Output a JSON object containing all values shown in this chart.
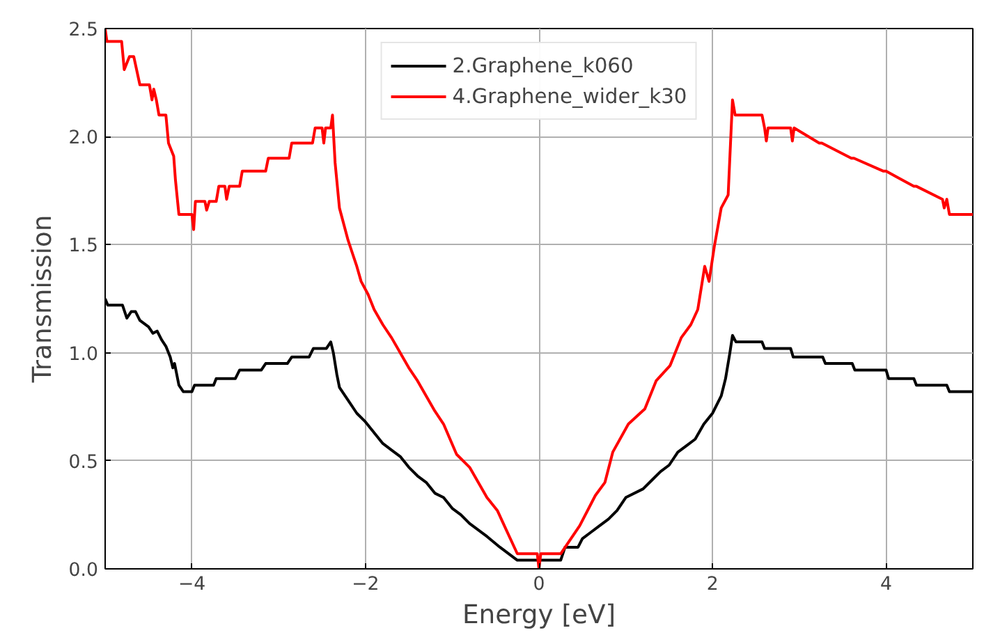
{
  "chart_data": {
    "type": "line",
    "xlabel": "Energy [eV]",
    "ylabel": "Transmission",
    "xlim": [
      -5,
      5
    ],
    "ylim": [
      0,
      2.5
    ],
    "xticks": [
      {
        "value": -4,
        "label": "−4"
      },
      {
        "value": -2,
        "label": "−2"
      },
      0,
      2,
      4
    ],
    "yticks": [
      {
        "value": 0,
        "label": "0.0"
      },
      0.5,
      {
        "value": 1,
        "label": "1.0"
      },
      1.5,
      {
        "value": 2,
        "label": "2.0"
      },
      2.5
    ],
    "grid": true,
    "legend": "top",
    "line_style": "solid",
    "marker": "none",
    "series": [
      {
        "name": "2.Graphene_k060",
        "color": "#000000",
        "x": [
          -5,
          -4.97,
          -4.8,
          -4.75,
          -4.7,
          -4.65,
          -4.6,
          -4.5,
          -4.45,
          -4.4,
          -4.35,
          -4.3,
          -4.25,
          -4.22,
          -4.2,
          -4.15,
          -4.1,
          -4.0,
          -3.97,
          -3.75,
          -3.72,
          -3.5,
          -3.45,
          -3.2,
          -3.15,
          -2.9,
          -2.85,
          -2.65,
          -2.6,
          -2.45,
          -2.4,
          -2.37,
          -2.33,
          -2.3,
          -2.2,
          -2.1,
          -2.0,
          -1.9,
          -1.8,
          -1.7,
          -1.6,
          -1.5,
          -1.4,
          -1.3,
          -1.2,
          -1.1,
          -1.0,
          -0.9,
          -0.8,
          -0.7,
          -0.6,
          -0.45,
          -0.25,
          0.25,
          0.3,
          0.45,
          0.5,
          0.6,
          0.7,
          0.8,
          0.9,
          1.0,
          1.2,
          1.3,
          1.4,
          1.5,
          1.6,
          1.7,
          1.8,
          1.9,
          2.0,
          2.1,
          2.15,
          2.2,
          2.23,
          2.27,
          2.57,
          2.6,
          2.9,
          2.93,
          3.27,
          3.3,
          3.61,
          3.64,
          4.0,
          4.03,
          4.32,
          4.35,
          4.7,
          4.73,
          5
        ],
        "values": [
          1.25,
          1.22,
          1.22,
          1.16,
          1.19,
          1.19,
          1.15,
          1.12,
          1.09,
          1.1,
          1.06,
          1.03,
          0.98,
          0.93,
          0.95,
          0.85,
          0.82,
          0.82,
          0.85,
          0.85,
          0.88,
          0.88,
          0.92,
          0.92,
          0.95,
          0.95,
          0.98,
          0.98,
          1.02,
          1.02,
          1.05,
          1.0,
          0.9,
          0.84,
          0.78,
          0.72,
          0.68,
          0.63,
          0.58,
          0.55,
          0.52,
          0.47,
          0.43,
          0.4,
          0.35,
          0.33,
          0.28,
          0.25,
          0.21,
          0.18,
          0.15,
          0.1,
          0.04,
          0.04,
          0.1,
          0.1,
          0.14,
          0.17,
          0.2,
          0.23,
          0.27,
          0.33,
          0.37,
          0.41,
          0.45,
          0.48,
          0.54,
          0.57,
          0.6,
          0.67,
          0.72,
          0.8,
          0.88,
          1.0,
          1.08,
          1.05,
          1.05,
          1.02,
          1.02,
          0.98,
          0.98,
          0.95,
          0.95,
          0.92,
          0.92,
          0.88,
          0.88,
          0.85,
          0.85,
          0.82,
          0.82
        ]
      },
      {
        "name": "4.Graphene_wider_k30",
        "color": "#ff0000",
        "x": [
          -5,
          -4.98,
          -4.81,
          -4.78,
          -4.72,
          -4.67,
          -4.6,
          -4.49,
          -4.46,
          -4.44,
          -4.41,
          -4.38,
          -4.3,
          -4.27,
          -4.21,
          -4.19,
          -4.15,
          -4.0,
          -3.98,
          -3.96,
          -3.85,
          -3.83,
          -3.8,
          -3.72,
          -3.69,
          -3.62,
          -3.6,
          -3.57,
          -3.45,
          -3.42,
          -3.15,
          -3.12,
          -2.88,
          -2.85,
          -2.61,
          -2.58,
          -2.5,
          -2.48,
          -2.46,
          -2.4,
          -2.38,
          -2.35,
          -2.3,
          -2.2,
          -2.1,
          -2.05,
          -1.97,
          -1.9,
          -1.8,
          -1.7,
          -1.6,
          -1.5,
          -1.4,
          -1.3,
          -1.2,
          -1.1,
          -0.95,
          -0.8,
          -0.7,
          -0.6,
          -0.48,
          -0.4,
          -0.25,
          -0.02,
          0,
          0.02,
          0.25,
          0.47,
          0.65,
          0.76,
          0.85,
          1.03,
          1.22,
          1.35,
          1.51,
          1.64,
          1.75,
          1.83,
          1.91,
          1.96,
          2.02,
          2.1,
          2.18,
          2.23,
          2.26,
          2.57,
          2.6,
          2.62,
          2.64,
          2.9,
          2.92,
          2.94,
          3.23,
          3.26,
          3.6,
          3.63,
          3.97,
          4.0,
          4.32,
          4.35,
          4.65,
          4.67,
          4.7,
          4.73,
          5
        ],
        "values": [
          2.5,
          2.44,
          2.44,
          2.31,
          2.37,
          2.37,
          2.24,
          2.24,
          2.17,
          2.22,
          2.17,
          2.1,
          2.1,
          1.97,
          1.91,
          1.8,
          1.64,
          1.64,
          1.57,
          1.7,
          1.7,
          1.66,
          1.7,
          1.7,
          1.77,
          1.77,
          1.71,
          1.77,
          1.77,
          1.84,
          1.84,
          1.9,
          1.9,
          1.97,
          1.97,
          2.04,
          2.04,
          1.97,
          2.04,
          2.04,
          2.1,
          1.88,
          1.67,
          1.52,
          1.4,
          1.33,
          1.27,
          1.2,
          1.13,
          1.07,
          1.0,
          0.93,
          0.87,
          0.8,
          0.73,
          0.67,
          0.53,
          0.47,
          0.4,
          0.33,
          0.27,
          0.2,
          0.07,
          0.07,
          0.0,
          0.07,
          0.07,
          0.2,
          0.34,
          0.4,
          0.54,
          0.67,
          0.74,
          0.87,
          0.94,
          1.07,
          1.13,
          1.2,
          1.4,
          1.33,
          1.49,
          1.67,
          1.73,
          2.17,
          2.1,
          2.1,
          2.04,
          1.98,
          2.04,
          2.04,
          1.98,
          2.04,
          1.97,
          1.97,
          1.9,
          1.9,
          1.84,
          1.84,
          1.77,
          1.77,
          1.71,
          1.67,
          1.71,
          1.64,
          1.64
        ]
      }
    ]
  }
}
